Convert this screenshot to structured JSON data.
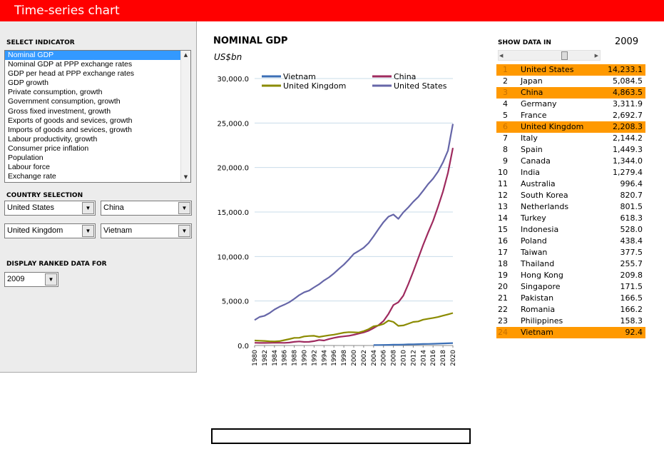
{
  "app": {
    "title": "Time-series chart"
  },
  "indicator": {
    "label": "SELECT INDICATOR",
    "items": [
      "Nominal GDP",
      "Nominal GDP at PPP exchange rates",
      "GDP per head at PPP exchange rates",
      "GDP growth",
      "Private consumption, growth",
      "Government consumption, growth",
      "Gross fixed investment, growth",
      "Exports of goods and sevices, growth",
      "Imports of goods and sevices, growth",
      "Labour productivity, growth",
      "Consumer price inflation",
      "Population",
      "Labour force",
      "Exchange rate"
    ],
    "selected_index": 0
  },
  "country_selection": {
    "label": "COUNTRY SELECTION",
    "country1": "United States",
    "country2": "China",
    "country3": "United Kingdom",
    "country4": "Vietnam"
  },
  "ranked": {
    "label": "DISPLAY RANKED DATA FOR",
    "year": "2009"
  },
  "show_data": {
    "label": "SHOW DATA IN",
    "year": "2009",
    "slider_fraction": 0.68,
    "highlight_color": "#ff9900",
    "rows": [
      {
        "rank": "1",
        "country": "United States",
        "value": "14,233.1",
        "highlight": true
      },
      {
        "rank": "2",
        "country": "Japan",
        "value": "5,084.5",
        "highlight": false
      },
      {
        "rank": "3",
        "country": "China",
        "value": "4,863.5",
        "highlight": true
      },
      {
        "rank": "4",
        "country": "Germany",
        "value": "3,311.9",
        "highlight": false
      },
      {
        "rank": "5",
        "country": "France",
        "value": "2,692.7",
        "highlight": false
      },
      {
        "rank": "6",
        "country": "United Kingdom",
        "value": "2,208.3",
        "highlight": true
      },
      {
        "rank": "7",
        "country": "Italy",
        "value": "2,144.2",
        "highlight": false
      },
      {
        "rank": "8",
        "country": "Spain",
        "value": "1,449.3",
        "highlight": false
      },
      {
        "rank": "9",
        "country": "Canada",
        "value": "1,344.0",
        "highlight": false
      },
      {
        "rank": "10",
        "country": "India",
        "value": "1,279.4",
        "highlight": false
      },
      {
        "rank": "11",
        "country": "Australia",
        "value": "996.4",
        "highlight": false
      },
      {
        "rank": "12",
        "country": "South Korea",
        "value": "820.7",
        "highlight": false
      },
      {
        "rank": "13",
        "country": "Netherlands",
        "value": "801.5",
        "highlight": false
      },
      {
        "rank": "14",
        "country": "Turkey",
        "value": "618.3",
        "highlight": false
      },
      {
        "rank": "15",
        "country": "Indonesia",
        "value": "528.0",
        "highlight": false
      },
      {
        "rank": "16",
        "country": "Poland",
        "value": "438.4",
        "highlight": false
      },
      {
        "rank": "17",
        "country": "Taiwan",
        "value": "377.5",
        "highlight": false
      },
      {
        "rank": "18",
        "country": "Thailand",
        "value": "255.7",
        "highlight": false
      },
      {
        "rank": "19",
        "country": "Hong Kong",
        "value": "209.8",
        "highlight": false
      },
      {
        "rank": "20",
        "country": "Singapore",
        "value": "171.5",
        "highlight": false
      },
      {
        "rank": "21",
        "country": "Pakistan",
        "value": "166.5",
        "highlight": false
      },
      {
        "rank": "22",
        "country": "Romania",
        "value": "166.2",
        "highlight": false
      },
      {
        "rank": "23",
        "country": "Philippines",
        "value": "158.3",
        "highlight": false
      },
      {
        "rank": "24",
        "country": "Vietnam",
        "value": "92.4",
        "highlight": true
      }
    ]
  },
  "icons": {
    "dropdown": "chevron-down-icon",
    "scroll_up": "arrow-up-icon",
    "scroll_down": "arrow-down-icon",
    "scroll_left": "arrow-left-icon",
    "scroll_right": "arrow-right-icon"
  },
  "chart_data": {
    "type": "line",
    "title": "NOMINAL GDP",
    "subtitle": "US$bn",
    "ylim": [
      0,
      30000
    ],
    "yticks": [
      "0.0",
      "5,000.0",
      "10,000.0",
      "15,000.0",
      "20,000.0",
      "25,000.0",
      "30,000.0"
    ],
    "xticks": [
      "1980",
      "1982",
      "1984",
      "1986",
      "1988",
      "1990",
      "1992",
      "1994",
      "1996",
      "1998",
      "2000",
      "2002",
      "2004",
      "2006",
      "2008",
      "2010",
      "2012",
      "2014",
      "2016",
      "2018",
      "2020"
    ],
    "grid": true,
    "legend_position": "top",
    "x": [
      1980,
      1981,
      1982,
      1983,
      1984,
      1985,
      1986,
      1987,
      1988,
      1989,
      1990,
      1991,
      1992,
      1993,
      1994,
      1995,
      1996,
      1997,
      1998,
      1999,
      2000,
      2001,
      2002,
      2003,
      2004,
      2005,
      2006,
      2007,
      2008,
      2009,
      2010,
      2011,
      2012,
      2013,
      2014,
      2015,
      2016,
      2017,
      2018,
      2019,
      2020
    ],
    "series": [
      {
        "name": "Vietnam",
        "color": "#3b6fb6",
        "values": [
          null,
          null,
          null,
          null,
          null,
          null,
          null,
          null,
          null,
          null,
          null,
          null,
          null,
          null,
          null,
          null,
          null,
          null,
          null,
          null,
          null,
          null,
          null,
          null,
          45,
          53,
          61,
          71,
          91,
          92,
          106,
          125,
          140,
          155,
          171,
          180,
          190,
          210,
          230,
          250,
          270
        ]
      },
      {
        "name": "China",
        "color": "#9e2a5e",
        "values": [
          305,
          290,
          285,
          300,
          310,
          305,
          300,
          330,
          410,
          460,
          400,
          410,
          490,
          620,
          560,
          730,
          860,
          960,
          1030,
          1090,
          1200,
          1340,
          1470,
          1660,
          1960,
          2290,
          2750,
          3550,
          4550,
          4864,
          5600,
          6900,
          8300,
          9800,
          11300,
          12700,
          14000,
          15600,
          17300,
          19400,
          22200
        ]
      },
      {
        "name": "United Kingdom",
        "color": "#8b8b00",
        "values": [
          560,
          540,
          510,
          470,
          460,
          490,
          600,
          720,
          860,
          870,
          1020,
          1070,
          1090,
          960,
          1060,
          1150,
          1220,
          1330,
          1440,
          1500,
          1480,
          1460,
          1610,
          1840,
          2160,
          2250,
          2420,
          2800,
          2650,
          2208,
          2250,
          2450,
          2650,
          2700,
          2900,
          3000,
          3100,
          3200,
          3350,
          3500,
          3650
        ]
      },
      {
        "name": "United States",
        "color": "#6666a8",
        "values": [
          2860,
          3210,
          3340,
          3640,
          4040,
          4350,
          4590,
          4870,
          5250,
          5660,
          5980,
          6170,
          6540,
          6880,
          7310,
          7660,
          8100,
          8610,
          9090,
          9660,
          10290,
          10630,
          10980,
          11510,
          12270,
          13090,
          13860,
          14480,
          14720,
          14233,
          14960,
          15520,
          16150,
          16690,
          17390,
          18140,
          18750,
          19540,
          20580,
          21900,
          24900
        ]
      }
    ]
  }
}
